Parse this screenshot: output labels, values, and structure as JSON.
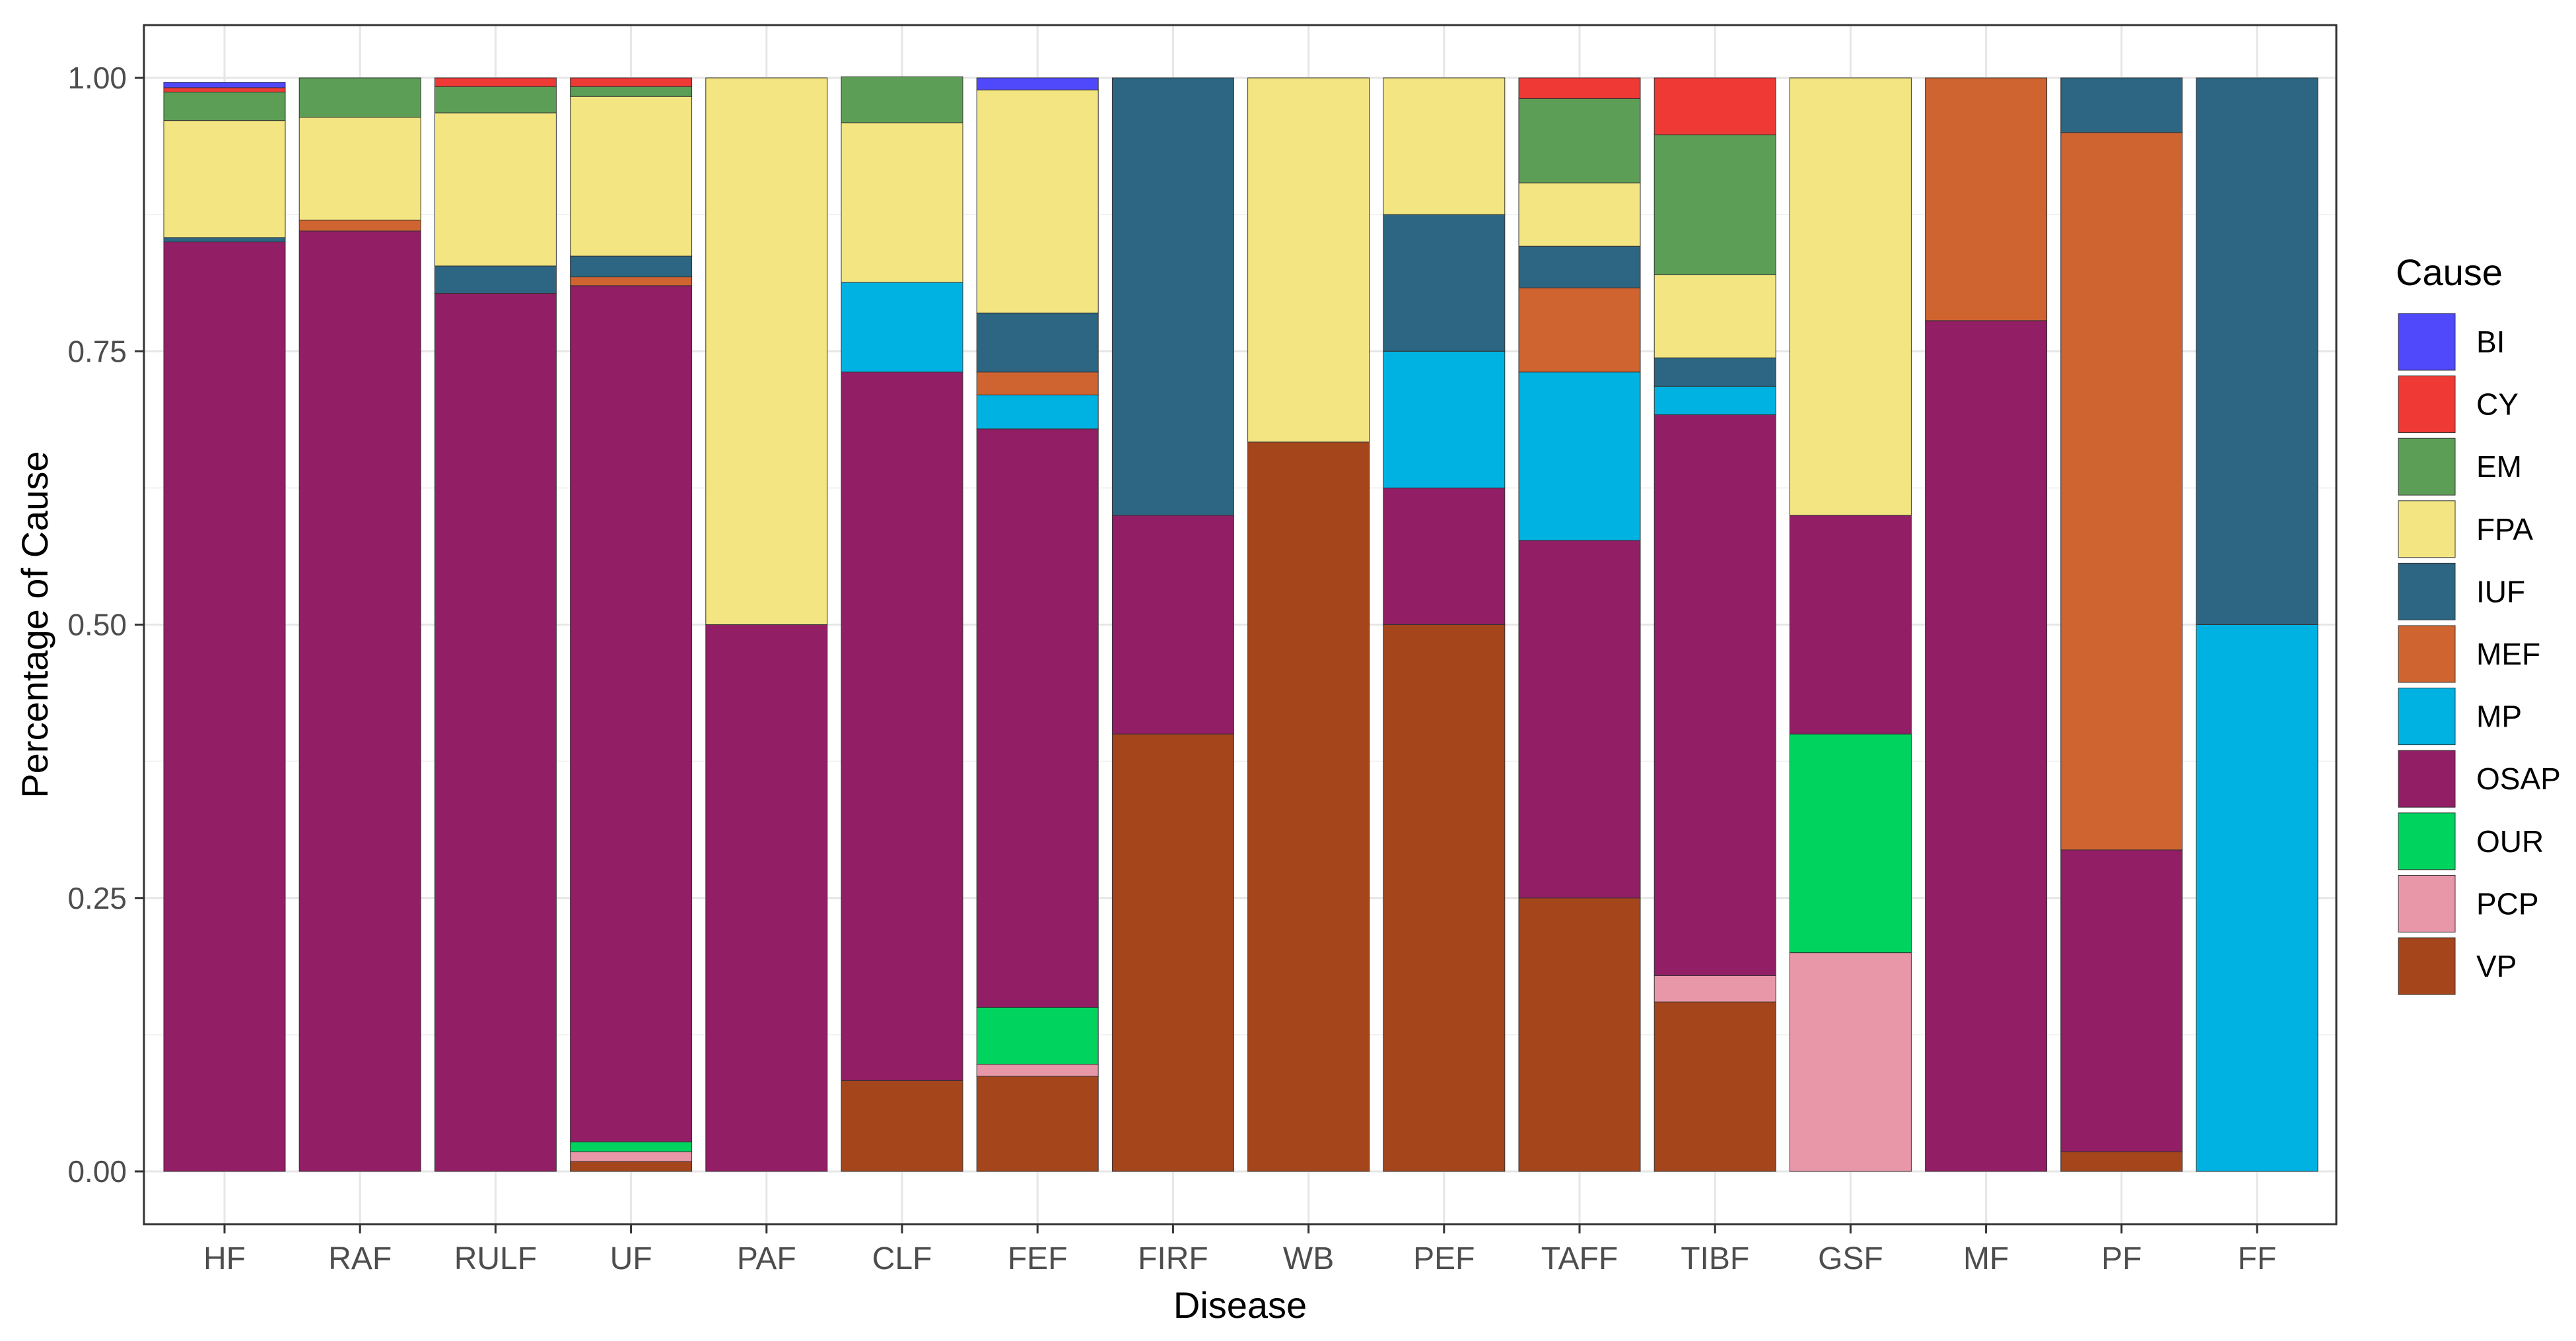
{
  "chart_data": {
    "type": "bar",
    "stacked": true,
    "title": "",
    "xlabel": "Disease",
    "ylabel": "Percentage of Cause",
    "ylim": [
      0,
      1
    ],
    "yticks": [
      "0.00",
      "0.25",
      "0.50",
      "0.75",
      "1.00"
    ],
    "ytick_values": [
      0,
      0.25,
      0.5,
      0.75,
      1
    ],
    "grid": true,
    "legend_title": "Cause",
    "legend_position": "right",
    "categories": [
      "HF",
      "RAF",
      "RULF",
      "UF",
      "PAF",
      "CLF",
      "FEF",
      "FIRF",
      "WB",
      "PEF",
      "TAFF",
      "TIBF",
      "GSF",
      "MF",
      "PF",
      "FF"
    ],
    "series": [
      {
        "name": "VP",
        "color": "#A5451C",
        "values": [
          0,
          0,
          0,
          0.009,
          0,
          0.083,
          0.087,
          0.4,
          0.667,
          0.5,
          0.25,
          0.155,
          0,
          0,
          0.018,
          0
        ]
      },
      {
        "name": "PCP",
        "color": "#E897A8",
        "values": [
          0,
          0,
          0,
          0.009,
          0,
          0,
          0.011,
          0,
          0,
          0,
          0,
          0.024,
          0.2,
          0,
          0,
          0
        ]
      },
      {
        "name": "OUR",
        "color": "#00D45F",
        "values": [
          0,
          0,
          0,
          0.009,
          0,
          0,
          0.052,
          0,
          0,
          0,
          0,
          0,
          0.2,
          0,
          0,
          0
        ]
      },
      {
        "name": "OSAP",
        "color": "#921E65",
        "values": [
          0.85,
          0.86,
          0.803,
          0.783,
          0.5,
          0.648,
          0.529,
          0.2,
          0,
          0.125,
          0.327,
          0.513,
          0.2,
          0.778,
          0.276,
          0
        ]
      },
      {
        "name": "MP",
        "color": "#00B2E2",
        "values": [
          0,
          0,
          0,
          0,
          0,
          0.082,
          0.031,
          0,
          0,
          0.125,
          0.154,
          0.026,
          0,
          0,
          0,
          0.5
        ]
      },
      {
        "name": "MEF",
        "color": "#D06431",
        "values": [
          0,
          0.01,
          0,
          0.008,
          0,
          0,
          0.021,
          0,
          0,
          0,
          0.077,
          0,
          0,
          0.222,
          0.656,
          0
        ]
      },
      {
        "name": "IUF",
        "color": "#2D6683",
        "values": [
          0.004,
          0,
          0.025,
          0.019,
          0,
          0,
          0.054,
          0.4,
          0,
          0.125,
          0.038,
          0.026,
          0,
          0,
          0.05,
          0.5
        ]
      },
      {
        "name": "FPA",
        "color": "#F2E582",
        "values": [
          0.107,
          0.094,
          0.14,
          0.146,
          0.5,
          0.146,
          0.204,
          0,
          0.333,
          0.125,
          0.058,
          0.076,
          0.4,
          0,
          0,
          0
        ]
      },
      {
        "name": "EM",
        "color": "#5C9E55",
        "values": [
          0.026,
          0.036,
          0.024,
          0.009,
          0,
          0.042,
          0,
          0,
          0,
          0,
          0.077,
          0.128,
          0,
          0,
          0,
          0
        ]
      },
      {
        "name": "CY",
        "color": "#EE3934",
        "values": [
          0.004,
          0,
          0.008,
          0.008,
          0,
          0,
          0,
          0,
          0,
          0,
          0.019,
          0.052,
          0,
          0,
          0,
          0
        ]
      },
      {
        "name": "BI",
        "color": "#5048FB",
        "values": [
          0.005,
          0,
          0,
          0,
          0,
          0,
          0.011,
          0,
          0,
          0,
          0,
          0,
          0,
          0,
          0,
          0
        ]
      }
    ],
    "legend_order": [
      "BI",
      "CY",
      "EM",
      "FPA",
      "IUF",
      "MEF",
      "MP",
      "OSAP",
      "OUR",
      "PCP",
      "VP"
    ]
  }
}
